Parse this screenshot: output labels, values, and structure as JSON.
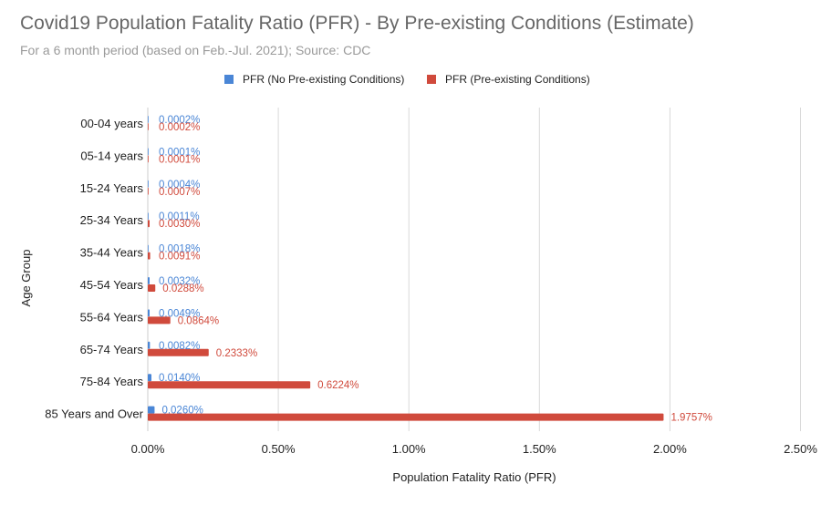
{
  "chart_data": {
    "type": "bar",
    "orientation": "horizontal",
    "title": "Covid19 Population Fatality Ratio (PFR) - By Pre-existing Conditions (Estimate)",
    "subtitle": "For a 6 month period (based on Feb.-Jul. 2021); Source: CDC",
    "xlabel": "Population Fatality Ratio (PFR)",
    "ylabel": "Age Group",
    "xlim": [
      0,
      2.5
    ],
    "x_ticks": [
      "0.00%",
      "0.50%",
      "1.00%",
      "1.50%",
      "2.00%",
      "2.50%"
    ],
    "x_tick_values": [
      0,
      0.5,
      1.0,
      1.5,
      2.0,
      2.5
    ],
    "grid": "vertical",
    "legend_position": "top",
    "categories": [
      "00-04 years",
      "05-14 years",
      "15-24 Years",
      "25-34 Years",
      "35-44 Years",
      "45-54 Years",
      "55-64 Years",
      "65-74 Years",
      "75-84 Years",
      "85 Years and Over"
    ],
    "series": [
      {
        "name": "PFR (No Pre-existing Conditions)",
        "color": "#4a86d6",
        "values": [
          0.0002,
          0.0001,
          0.0004,
          0.0011,
          0.0018,
          0.0032,
          0.0049,
          0.0082,
          0.014,
          0.026
        ],
        "labels": [
          "0.0002%",
          "0.0001%",
          "0.0004%",
          "0.0011%",
          "0.0018%",
          "0.0032%",
          "0.0049%",
          "0.0082%",
          "0.0140%",
          "0.0260%"
        ]
      },
      {
        "name": "PFR (Pre-existing Conditions)",
        "color": "#d04a3c",
        "values": [
          0.0002,
          0.0001,
          0.0007,
          0.003,
          0.0091,
          0.0288,
          0.0864,
          0.2333,
          0.6224,
          1.9757
        ],
        "labels": [
          "0.0002%",
          "0.0001%",
          "0.0007%",
          "0.0030%",
          "0.0091%",
          "0.0288%",
          "0.0864%",
          "0.2333%",
          "0.6224%",
          "1.9757%"
        ]
      }
    ]
  },
  "colors": {
    "gridline": "#d9d9d9",
    "axis_text": "#222222",
    "title_text": "#666666",
    "subtitle_text": "#9a9a9a"
  }
}
